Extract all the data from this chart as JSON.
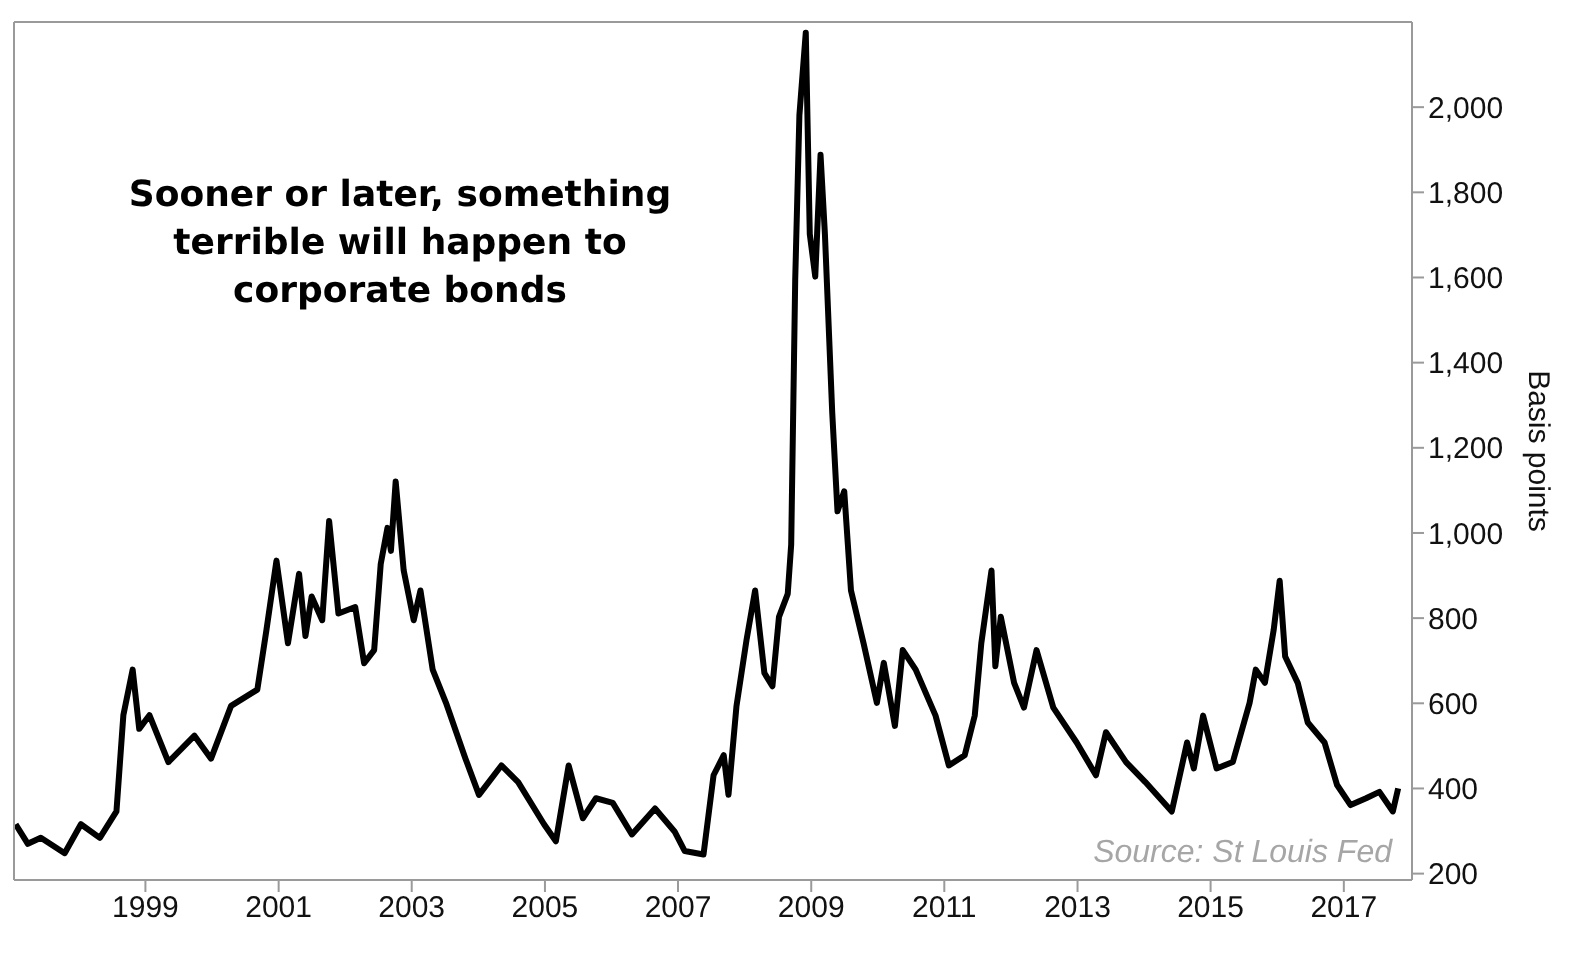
{
  "chart_data": {
    "type": "line",
    "title": "Sooner or later, something terrible will happen to corporate bonds",
    "ylabel": "Basis points",
    "annotations": [
      "Source: St Louis Fed"
    ],
    "x": [
      "1997-01-19",
      "1997-03-27",
      "1997-06-06",
      "1997-10-15",
      "1998-01-12",
      "1998-04-26",
      "1998-07-26",
      "1998-09-02",
      "1998-10-23",
      "1998-11-28",
      "1999-01-23",
      "1999-05-07",
      "1999-09-27",
      "1999-12-27",
      "2000-04-15",
      "2000-09-06",
      "2000-10-26",
      "2000-12-20",
      "2001-02-21",
      "2001-04-23",
      "2001-05-28",
      "2001-07-01",
      "2001-08-28",
      "2001-10-05",
      "2001-11-25",
      "2002-02-25",
      "2002-04-15",
      "2002-06-09",
      "2002-07-15",
      "2002-08-21",
      "2002-09-09",
      "2002-10-05",
      "2002-11-18",
      "2003-01-12",
      "2003-02-18",
      "2003-04-26",
      "2003-07-08",
      "2003-10-23",
      "2004-01-05",
      "2004-05-07",
      "2004-08-07",
      "2004-12-27",
      "2005-03-02",
      "2005-05-11",
      "2005-07-28",
      "2005-10-08",
      "2006-01-08",
      "2006-04-23",
      "2006-08-28",
      "2006-12-13",
      "2007-02-07",
      "2007-05-21",
      "2007-07-15",
      "2007-09-09",
      "2007-10-05",
      "2007-11-18",
      "2008-01-12",
      "2008-02-28",
      "2008-04-19",
      "2008-06-02",
      "2008-07-08",
      "2008-08-25",
      "2008-09-13",
      "2008-10-05",
      "2008-10-28",
      "2008-12-02",
      "2008-12-24",
      "2009-01-23",
      "2009-02-21",
      "2009-03-17",
      "2009-04-26",
      "2009-05-25",
      "2009-07-01",
      "2009-08-07",
      "2009-10-15",
      "2009-12-27",
      "2010-02-03",
      "2010-04-05",
      "2010-05-18",
      "2010-07-28",
      "2010-11-14",
      "2011-01-26",
      "2011-04-23",
      "2011-06-17",
      "2011-07-23",
      "2011-09-17",
      "2011-10-08",
      "2011-11-07",
      "2012-01-19",
      "2012-03-13",
      "2012-05-21",
      "2012-08-21",
      "2012-12-27",
      "2013-04-12",
      "2013-06-06",
      "2013-09-24",
      "2014-01-08",
      "2014-06-02",
      "2014-08-25",
      "2014-10-01",
      "2014-11-21",
      "2015-02-03",
      "2015-05-03",
      "2015-08-03",
      "2015-09-06",
      "2015-10-26",
      "2015-12-13",
      "2016-01-15",
      "2016-02-14",
      "2016-04-23",
      "2016-06-17",
      "2016-09-17",
      "2016-11-25",
      "2017-02-07",
      "2017-05-03",
      "2017-07-15",
      "2017-09-27",
      "2017-10-26"
    ],
    "series": [
      {
        "color": "#000000",
        "values": [
          316,
          270,
          284,
          248,
          316,
          284,
          346,
          572,
          679,
          540,
          572,
          462,
          524,
          470,
          594,
          632,
          772,
          935,
          741,
          904,
          758,
          851,
          795,
          1028,
          811,
          826,
          694,
          725,
          927,
          1012,
          958,
          1121,
          912,
          795,
          865,
          679,
          601,
          470,
          385,
          454,
          415,
          316,
          276,
          454,
          330,
          377,
          366,
          292,
          353,
          299,
          253,
          245,
          431,
          478,
          385,
          594,
          749,
          865,
          671,
          640,
          803,
          857,
          973,
          1594,
          1981,
          2175,
          1702,
          1602,
          1888,
          1702,
          1284,
          1051,
          1098,
          865,
          741,
          601,
          695,
          547,
          725,
          679,
          571,
          454,
          478,
          571,
          741,
          912,
          687,
          803,
          648,
          590,
          725,
          590,
          508,
          431,
          532,
          462,
          415,
          346,
          508,
          447,
          571,
          447,
          462,
          601,
          679,
          648,
          772,
          888,
          710,
          648,
          555,
          508,
          408,
          361,
          377,
          392,
          346,
          400
        ]
      }
    ],
    "xlim": [
      "1997-01-10",
      "2018-01-10"
    ],
    "xticks": [
      "1999",
      "2001",
      "2003",
      "2005",
      "2007",
      "2009",
      "2011",
      "2013",
      "2015",
      "2017"
    ],
    "ylim": [
      185,
      2200
    ],
    "yticks": [
      200,
      400,
      600,
      800,
      {
        "value": 1000,
        "label": "1,000"
      },
      {
        "value": 1200,
        "label": "1,200"
      },
      {
        "value": 1400,
        "label": "1,400"
      },
      {
        "value": 1600,
        "label": "1,600"
      },
      {
        "value": 1800,
        "label": "1,800"
      },
      {
        "value": 2000,
        "label": "2,000"
      }
    ],
    "grid": false,
    "legend": false,
    "marker": "none",
    "line_style": "solid"
  }
}
